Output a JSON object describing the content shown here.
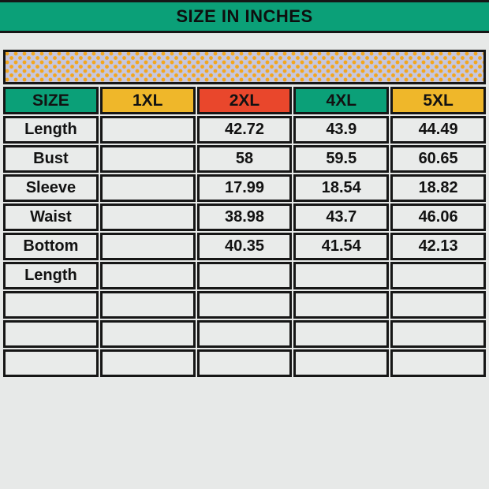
{
  "title": "SIZE IN INCHES",
  "table": {
    "columns": [
      {
        "label": "SIZE",
        "color": "#0ba078"
      },
      {
        "label": "1XL",
        "color": "#efb72a"
      },
      {
        "label": "2XL",
        "color": "#e9472c"
      },
      {
        "label": "4XL",
        "color": "#0ba078"
      },
      {
        "label": "5XL",
        "color": "#efb72a"
      }
    ],
    "rows": [
      {
        "label": "Length",
        "values": [
          "",
          "42.72",
          "43.9",
          "44.49"
        ]
      },
      {
        "label": "Bust",
        "values": [
          "",
          "58",
          "59.5",
          "60.65"
        ]
      },
      {
        "label": "Sleeve",
        "values": [
          "",
          "17.99",
          "18.54",
          "18.82"
        ]
      },
      {
        "label": "Waist",
        "values": [
          "",
          "38.98",
          "43.7",
          "46.06"
        ]
      },
      {
        "label": "Bottom",
        "values": [
          "",
          "40.35",
          "41.54",
          "42.13"
        ]
      },
      {
        "label": "Length",
        "values": [
          "",
          "",
          "",
          ""
        ]
      },
      {
        "label": "",
        "values": [
          "",
          "",
          "",
          ""
        ]
      },
      {
        "label": "",
        "values": [
          "",
          "",
          "",
          ""
        ]
      },
      {
        "label": "",
        "values": [
          "",
          "",
          "",
          ""
        ]
      }
    ]
  },
  "colors": {
    "banner_green": "#0ba078",
    "header_yellow": "#efb72a",
    "header_red": "#e9472c",
    "band_background": "#c7c7de",
    "band_dot_orange": "#f2a71f",
    "cell_background": "#e9ebea",
    "page_background": "#e7e9e8",
    "border_black": "#161616",
    "text_black": "#121212"
  },
  "chart_data": {
    "type": "table",
    "title": "SIZE IN INCHES",
    "units": "inches",
    "columns": [
      "SIZE",
      "1XL",
      "2XL",
      "4XL",
      "5XL"
    ],
    "rows": [
      [
        "Length",
        "",
        "42.72",
        "43.9",
        "44.49"
      ],
      [
        "Bust",
        "",
        "58",
        "59.5",
        "60.65"
      ],
      [
        "Sleeve",
        "",
        "17.99",
        "18.54",
        "18.82"
      ],
      [
        "Waist",
        "",
        "38.98",
        "43.7",
        "46.06"
      ],
      [
        "Bottom Length",
        "",
        "40.35",
        "41.54",
        "42.13"
      ]
    ]
  }
}
